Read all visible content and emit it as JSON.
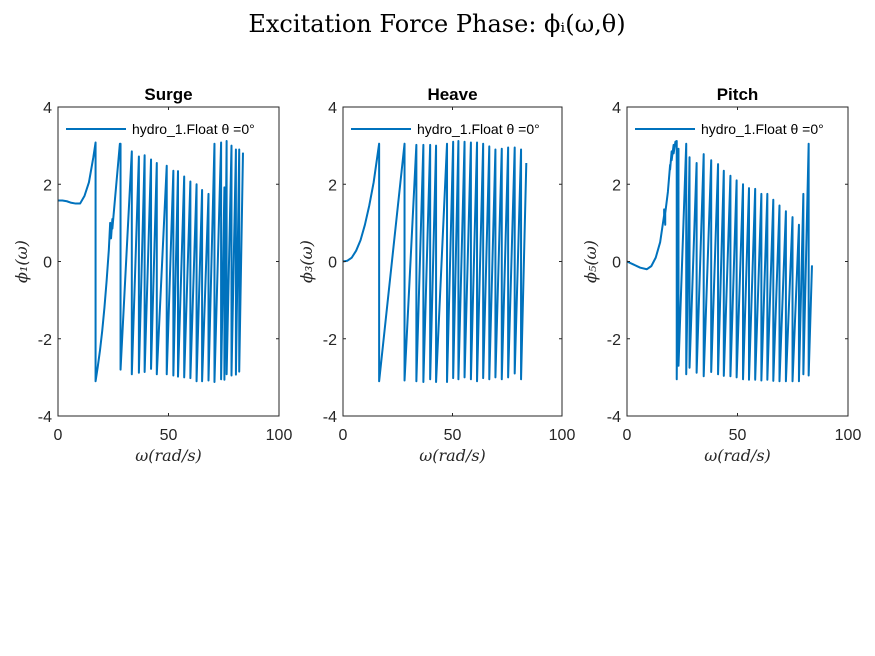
{
  "figure_title": "Excitation Force Phase: ϕᵢ(ω,θ)",
  "line_color": "#0072BD",
  "chart_data": [
    {
      "type": "line",
      "title": "Surge",
      "xlabel": "ω(rad/s)",
      "ylabel": "ϕ₁(ω)",
      "xlim": [
        0,
        100
      ],
      "ylim": [
        -4,
        4
      ],
      "xticks": [
        "0",
        "50",
        "100"
      ],
      "yticks": [
        "-4",
        "-2",
        "0",
        "2",
        "4"
      ],
      "legend": "hydro_1.Float θ =0°",
      "legend_position": "top",
      "series": [
        {
          "x": [
            0,
            2,
            4,
            6,
            8,
            10,
            12,
            14,
            16,
            17,
            17,
            18,
            19,
            20,
            21,
            22,
            23,
            23.6,
            23.6,
            24,
            24.6,
            24.6,
            28,
            28.3,
            28.3,
            33.4,
            33.4,
            36.6,
            36.6,
            39.2,
            39.2,
            42.1,
            42.1,
            44.7,
            44.7,
            49.2,
            49.2,
            52.2,
            52.2,
            54.3,
            54.3,
            57.1,
            57.1,
            59.9,
            59.9,
            62.7,
            62.7,
            65.2,
            65.2,
            68.1,
            68.1,
            70.8,
            70.8,
            73.8,
            73.8,
            75.3,
            75.3,
            76.3,
            76.3,
            78.5,
            78.5,
            80.5,
            80.5,
            82,
            82,
            83.7
          ],
          "y": [
            1.58,
            1.58,
            1.56,
            1.52,
            1.5,
            1.5,
            1.7,
            2.05,
            2.7,
            3.08,
            -3.1,
            -2.72,
            -2.3,
            -1.8,
            -1.2,
            -0.5,
            0.3,
            1.0,
            0.95,
            0.6,
            1.1,
            0.85,
            3.05,
            3.05,
            -2.8,
            2.85,
            -2.92,
            2.72,
            -2.88,
            2.75,
            -2.86,
            2.64,
            -2.78,
            2.55,
            -2.92,
            2.48,
            -2.92,
            2.35,
            -2.95,
            2.34,
            -2.98,
            2.2,
            -3.0,
            2.07,
            -3.02,
            2.0,
            -3.1,
            1.85,
            -3.1,
            1.75,
            -3.08,
            3.05,
            -3.12,
            3.08,
            -3.05,
            1.92,
            -3.06,
            3.12,
            -2.92,
            3.0,
            -2.95,
            2.9,
            -2.93,
            2.9,
            -2.85,
            2.82
          ]
        }
      ]
    },
    {
      "type": "line",
      "title": "Heave",
      "xlabel": "ω(rad/s)",
      "ylabel": "ϕ₃(ω)",
      "xlim": [
        0,
        100
      ],
      "ylim": [
        -4,
        4
      ],
      "xticks": [
        "0",
        "50",
        "100"
      ],
      "yticks": [
        "-4",
        "-2",
        "0",
        "2",
        "4"
      ],
      "legend": "hydro_1.Float θ =0°",
      "legend_position": "top",
      "series": [
        {
          "x": [
            0,
            2,
            4,
            6,
            8,
            10,
            12,
            14,
            16.5,
            16.5,
            28.1,
            28.1,
            33.5,
            33.5,
            36.7,
            36.7,
            39.8,
            39.8,
            42.5,
            42.5,
            47.5,
            47.5,
            50.3,
            50.3,
            52.7,
            52.7,
            55.5,
            55.5,
            58.4,
            58.4,
            61.2,
            61.2,
            64,
            64,
            66.8,
            66.8,
            69.6,
            69.6,
            72.5,
            72.5,
            75.4,
            75.4,
            78.4,
            78.4,
            81.3,
            81.3,
            83.7
          ],
          "y": [
            0,
            0.02,
            0.1,
            0.28,
            0.55,
            0.95,
            1.45,
            2.05,
            3.05,
            -3.1,
            3.05,
            -3.08,
            3.02,
            -3.1,
            3.02,
            -3.12,
            3.02,
            -3.05,
            3.0,
            -3.12,
            3.05,
            -3.12,
            3.1,
            -3.02,
            3.12,
            -3.05,
            3.1,
            -3.0,
            3.08,
            -3.05,
            3.08,
            -3.1,
            3.05,
            -3.02,
            2.98,
            -3.05,
            2.9,
            -3.0,
            2.92,
            -3.05,
            2.95,
            -3.0,
            2.95,
            -2.9,
            2.9,
            -3.05,
            2.55
          ]
        }
      ]
    },
    {
      "type": "line",
      "title": "Pitch",
      "xlabel": "ω(rad/s)",
      "ylabel": "ϕ₅(ω)",
      "xlim": [
        0,
        100
      ],
      "ylim": [
        -4,
        4
      ],
      "xticks": [
        "0",
        "50",
        "100"
      ],
      "yticks": [
        "-4",
        "-2",
        "0",
        "2",
        "4"
      ],
      "legend": "hydro_1.Float θ =0°",
      "legend_position": "top",
      "series": [
        {
          "x": [
            0,
            3,
            6,
            9,
            11,
            13,
            15,
            16.8,
            16.8,
            17.3,
            17.3,
            18.5,
            19.5,
            19.5,
            20.2,
            20.2,
            21.1,
            21.1,
            21.9,
            22.5,
            22.5,
            23.3,
            23.3,
            26.8,
            26.8,
            28.3,
            28.3,
            31.5,
            31.5,
            34.7,
            34.7,
            38.1,
            38.1,
            41.2,
            41.2,
            43.8,
            43.8,
            46.8,
            46.8,
            49.6,
            49.6,
            52.5,
            52.5,
            55.2,
            55.2,
            58,
            58,
            60.8,
            60.8,
            63.5,
            63.5,
            66.2,
            66.2,
            69,
            69,
            71.9,
            71.9,
            74.9,
            74.9,
            77.8,
            77.8,
            79.8,
            79.8,
            82.2,
            82.2,
            83.7
          ],
          "y": [
            0,
            -0.08,
            -0.16,
            -0.2,
            -0.12,
            0.1,
            0.5,
            1.2,
            1.35,
            0.95,
            1.25,
            1.8,
            2.5,
            2.38,
            2.85,
            2.62,
            3.02,
            2.8,
            3.1,
            3.12,
            -3.05,
            2.92,
            -2.7,
            3.05,
            -2.92,
            2.7,
            -2.75,
            2.55,
            -2.88,
            2.78,
            -2.97,
            2.62,
            -2.86,
            2.52,
            -2.92,
            2.35,
            -2.96,
            2.22,
            -2.97,
            2.1,
            -3.0,
            2.0,
            -3.05,
            1.9,
            -3.06,
            1.88,
            -3.06,
            1.75,
            -3.08,
            1.75,
            -3.06,
            1.6,
            -3.09,
            1.45,
            -3.1,
            1.3,
            -3.1,
            1.15,
            -3.1,
            0.95,
            -3.1,
            1.75,
            -2.92,
            3.05,
            -2.95,
            -0.1
          ]
        }
      ]
    }
  ]
}
